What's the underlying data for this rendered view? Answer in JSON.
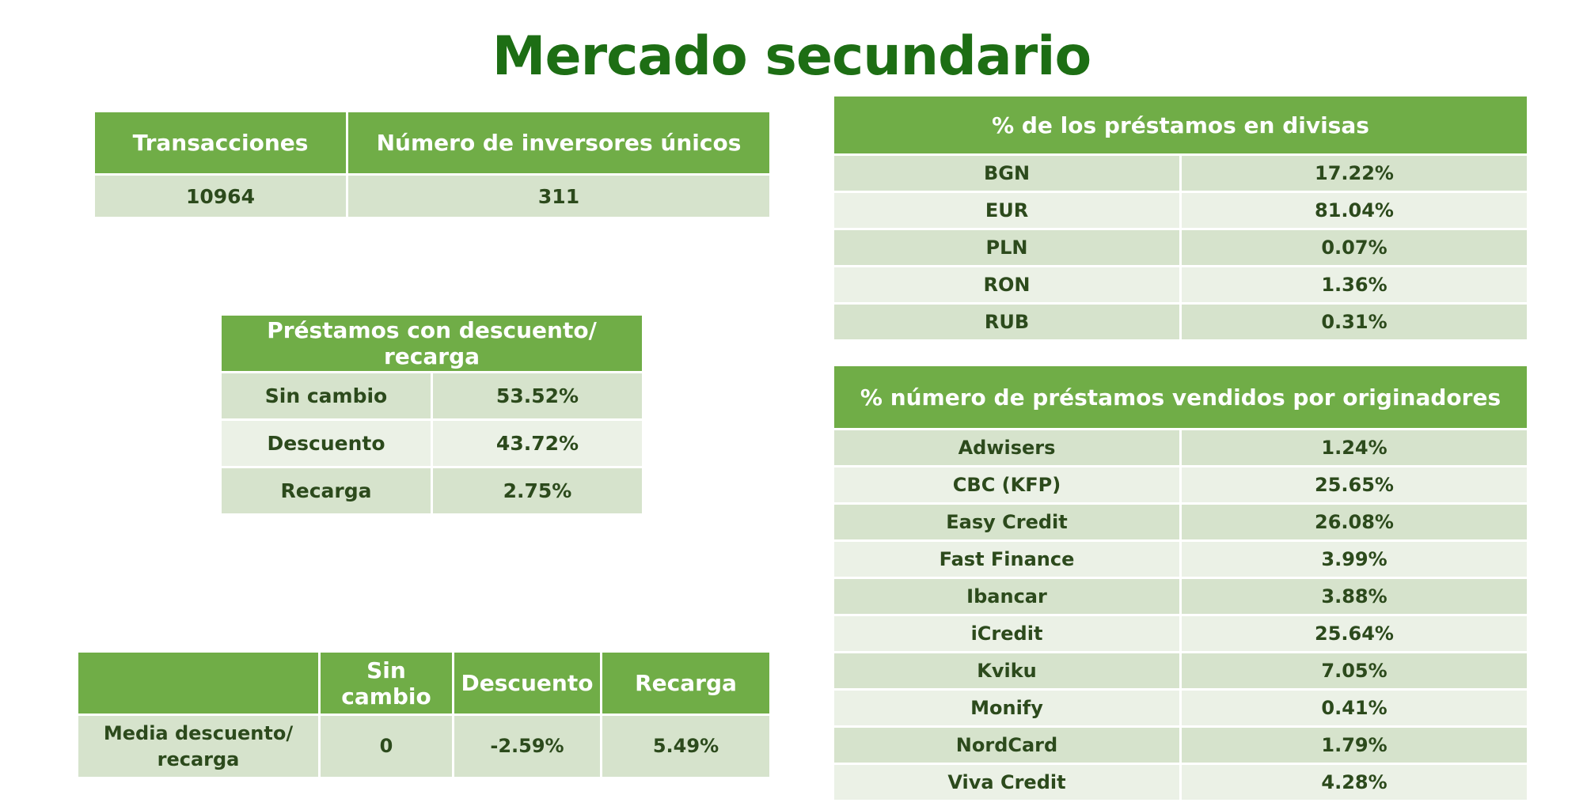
{
  "title": "Mercado secundario",
  "transactions_table": {
    "headers": [
      "Transacciones",
      "Número de inversores únicos"
    ],
    "values": [
      "10964",
      "311"
    ]
  },
  "discount_table": {
    "header": "Préstamos con descuento/ recarga",
    "rows": [
      {
        "label": "Sin cambio",
        "value": "53.52%"
      },
      {
        "label": "Descuento",
        "value": "43.72%"
      },
      {
        "label": "Recarga",
        "value": "2.75%"
      }
    ]
  },
  "average_table": {
    "headers": [
      "",
      "Sin cambio",
      "Descuento",
      "Recarga"
    ],
    "row_label": "Media descuento/ recarga",
    "values": [
      "0",
      "-2.59%",
      "5.49%"
    ]
  },
  "currency_table": {
    "header": "% de los  préstamos en divisas",
    "rows": [
      {
        "label": "BGN",
        "value": "17.22%"
      },
      {
        "label": "EUR",
        "value": "81.04%"
      },
      {
        "label": "PLN",
        "value": "0.07%"
      },
      {
        "label": "RON",
        "value": "1.36%"
      },
      {
        "label": "RUB",
        "value": "0.31%"
      }
    ]
  },
  "originators_table": {
    "header": "% número de préstamos vendidos por originadores",
    "rows": [
      {
        "label": "Adwisers",
        "value": "1.24%"
      },
      {
        "label": "CBC (KFP)",
        "value": "25.65%"
      },
      {
        "label": "Easy Credit",
        "value": "26.08%"
      },
      {
        "label": "Fast Finance",
        "value": "3.99%"
      },
      {
        "label": "Ibancar",
        "value": "3.88%"
      },
      {
        "label": "iCredit",
        "value": "25.64%"
      },
      {
        "label": "Kviku",
        "value": "7.05%"
      },
      {
        "label": "Monify",
        "value": "0.41%"
      },
      {
        "label": "NordCard",
        "value": "1.79%"
      },
      {
        "label": "Viva Credit",
        "value": "4.28%"
      }
    ]
  },
  "colors": {
    "title": "#1d6e14",
    "header_bg": "#70ad47",
    "row_dark": "#d6e3cc",
    "row_light": "#ebf1e6",
    "cell_text": "#2c4a1c"
  }
}
